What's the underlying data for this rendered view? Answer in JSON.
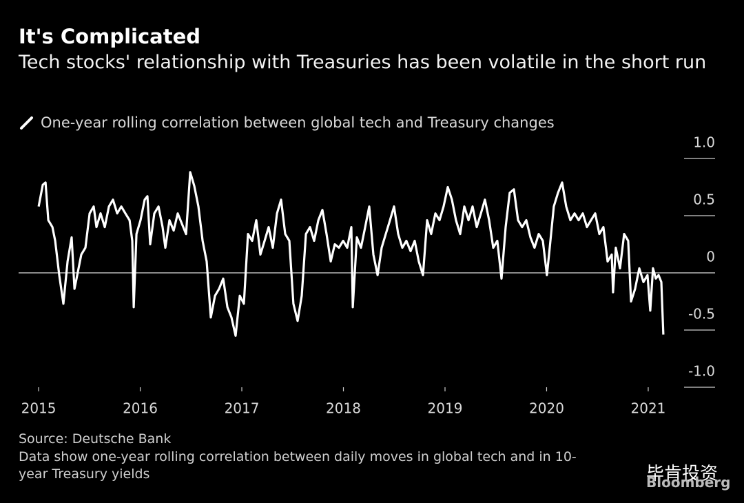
{
  "chart_data": {
    "type": "line",
    "title": "It's Complicated",
    "subtitle": "Tech stocks' relationship with Treasuries has been volatile in the short run",
    "source": "Source: Deutsche Bank",
    "note": "Data show one-year rolling correlation between daily moves in global tech and in 10-year Treasury yields",
    "brand": "Bloomberg",
    "watermark": "毕肯投资",
    "xlim": [
      2014.803,
      2021.658
    ],
    "xticks": [
      2015,
      2016,
      2017,
      2018,
      2019,
      2020,
      2021
    ],
    "ylim": [
      -1.0,
      1.0
    ],
    "yticks": [
      {
        "value": 1,
        "label": "1.0"
      },
      0.5,
      0,
      -0.5,
      {
        "value": -1,
        "label": "-1.0"
      }
    ],
    "grid": true,
    "series": [
      {
        "name": "One-year rolling correlation between global tech and Treasury changes",
        "color": "#ffffff",
        "x": [
          2015.0,
          2015.041,
          2015.068,
          2015.095,
          2015.136,
          2015.163,
          2015.203,
          2015.244,
          2015.285,
          2015.325,
          2015.353,
          2015.38,
          2015.42,
          2015.461,
          2015.502,
          2015.542,
          2015.569,
          2015.61,
          2015.651,
          2015.692,
          2015.732,
          2015.773,
          2015.814,
          2015.854,
          2015.895,
          2015.922,
          2015.936,
          2015.963,
          2016.003,
          2016.044,
          2016.071,
          2016.098,
          2016.139,
          2016.18,
          2016.22,
          2016.247,
          2016.288,
          2016.329,
          2016.369,
          2016.41,
          2016.451,
          2016.492,
          2016.532,
          2016.573,
          2016.614,
          2016.654,
          2016.695,
          2016.736,
          2016.776,
          2016.817,
          2016.858,
          2016.898,
          2016.939,
          2016.98,
          2017.02,
          2017.061,
          2017.102,
          2017.142,
          2017.183,
          2017.224,
          2017.264,
          2017.305,
          2017.346,
          2017.386,
          2017.427,
          2017.468,
          2017.508,
          2017.549,
          2017.59,
          2017.631,
          2017.671,
          2017.712,
          2017.753,
          2017.793,
          2017.834,
          2017.875,
          2017.915,
          2017.956,
          2017.997,
          2018.037,
          2018.078,
          2018.092,
          2018.132,
          2018.173,
          2018.214,
          2018.254,
          2018.295,
          2018.336,
          2018.376,
          2018.417,
          2018.458,
          2018.498,
          2018.539,
          2018.58,
          2018.62,
          2018.661,
          2018.702,
          2018.742,
          2018.783,
          2018.824,
          2018.864,
          2018.905,
          2018.946,
          2018.986,
          2019.027,
          2019.068,
          2019.108,
          2019.149,
          2019.19,
          2019.231,
          2019.271,
          2019.312,
          2019.353,
          2019.393,
          2019.434,
          2019.475,
          2019.515,
          2019.556,
          2019.597,
          2019.637,
          2019.678,
          2019.719,
          2019.759,
          2019.8,
          2019.841,
          2019.881,
          2019.922,
          2019.963,
          2020.003,
          2020.031,
          2020.071,
          2020.112,
          2020.153,
          2020.193,
          2020.234,
          2020.275,
          2020.315,
          2020.356,
          2020.397,
          2020.437,
          2020.478,
          2020.519,
          2020.559,
          2020.6,
          2020.641,
          2020.654,
          2020.681,
          2020.722,
          2020.763,
          2020.803,
          2020.831,
          2020.871,
          2020.912,
          2020.953,
          2020.993,
          2021.02,
          2021.047,
          2021.075,
          2021.102,
          2021.129,
          2021.149
        ],
        "values": [
          0.58,
          0.77,
          0.79,
          0.46,
          0.4,
          0.28,
          -0.02,
          -0.27,
          0.1,
          0.31,
          -0.14,
          -0.02,
          0.16,
          0.22,
          0.52,
          0.58,
          0.4,
          0.52,
          0.4,
          0.58,
          0.64,
          0.52,
          0.58,
          0.52,
          0.46,
          0.28,
          -0.3,
          0.34,
          0.46,
          0.64,
          0.67,
          0.25,
          0.52,
          0.58,
          0.4,
          0.22,
          0.46,
          0.37,
          0.52,
          0.43,
          0.34,
          0.88,
          0.76,
          0.58,
          0.28,
          0.1,
          -0.39,
          -0.2,
          -0.14,
          -0.05,
          -0.3,
          -0.39,
          -0.55,
          -0.2,
          -0.27,
          0.34,
          0.28,
          0.46,
          0.16,
          0.28,
          0.4,
          0.22,
          0.52,
          0.64,
          0.34,
          0.28,
          -0.27,
          -0.42,
          -0.2,
          0.34,
          0.4,
          0.28,
          0.46,
          0.55,
          0.34,
          0.1,
          0.25,
          0.22,
          0.28,
          0.22,
          0.4,
          -0.3,
          0.31,
          0.22,
          0.4,
          0.58,
          0.16,
          -0.02,
          0.22,
          0.34,
          0.46,
          0.58,
          0.34,
          0.22,
          0.28,
          0.19,
          0.28,
          0.1,
          -0.02,
          0.46,
          0.34,
          0.52,
          0.46,
          0.58,
          0.75,
          0.64,
          0.46,
          0.34,
          0.58,
          0.46,
          0.58,
          0.4,
          0.52,
          0.64,
          0.46,
          0.22,
          0.28,
          -0.05,
          0.4,
          0.7,
          0.73,
          0.46,
          0.4,
          0.46,
          0.31,
          0.22,
          0.34,
          0.28,
          -0.02,
          0.22,
          0.58,
          0.7,
          0.79,
          0.58,
          0.46,
          0.52,
          0.46,
          0.52,
          0.4,
          0.46,
          0.52,
          0.34,
          0.4,
          0.1,
          0.16,
          -0.17,
          0.22,
          0.04,
          0.34,
          0.28,
          -0.25,
          -0.14,
          0.04,
          -0.08,
          -0.02,
          -0.33,
          0.04,
          -0.05,
          -0.02,
          -0.08,
          -0.54
        ]
      }
    ]
  }
}
